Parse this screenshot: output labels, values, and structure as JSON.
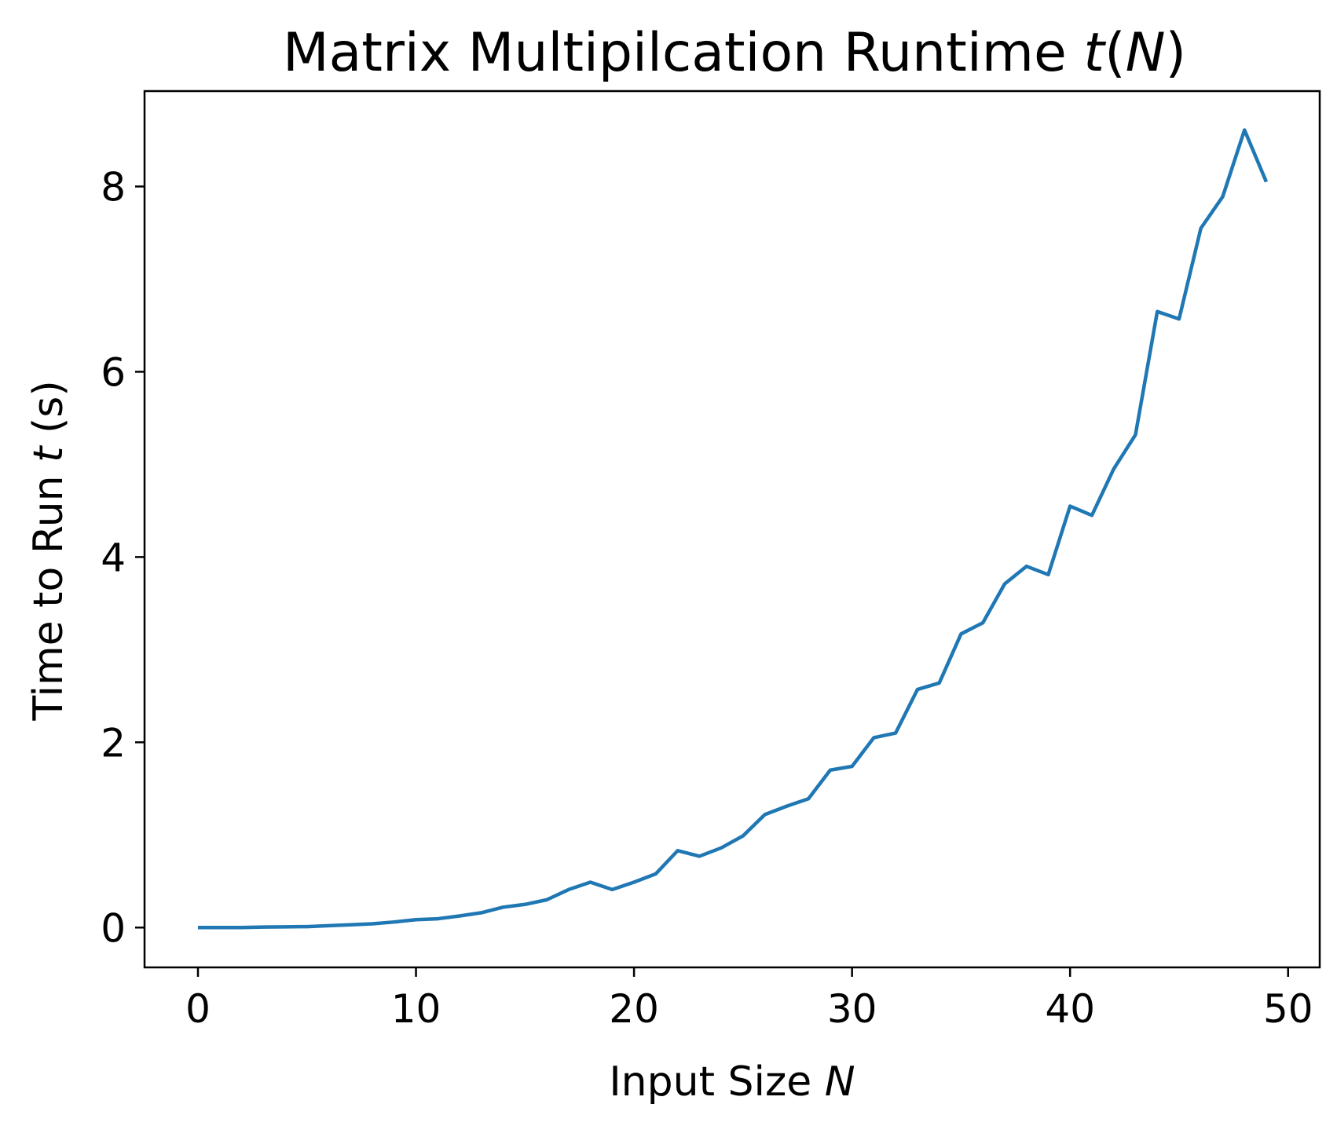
{
  "chart_data": {
    "type": "line",
    "title": {
      "prefix": "Matrix Multipilcation Runtime ",
      "var": "t",
      "open": "(",
      "var2": "N",
      "close": ")"
    },
    "xlabel": {
      "prefix": "Input Size ",
      "var": "N"
    },
    "ylabel": {
      "prefix": "Time to Run ",
      "var": "t",
      "suffix": " (s)"
    },
    "xlim": [
      -2.45,
      51.45
    ],
    "ylim": [
      -0.43,
      9.03
    ],
    "x_ticks": [
      0,
      10,
      20,
      30,
      40,
      50
    ],
    "y_ticks": [
      0,
      2,
      4,
      6,
      8
    ],
    "x_tick_labels": [
      "0",
      "10",
      "20",
      "30",
      "40",
      "50"
    ],
    "y_tick_labels": [
      "0",
      "2",
      "4",
      "6",
      "8"
    ],
    "grid": false,
    "legend": null,
    "series": [
      {
        "color": "#1f77b4",
        "x": [
          0,
          1,
          2,
          3,
          4,
          5,
          6,
          7,
          8,
          9,
          10,
          11,
          12,
          13,
          14,
          15,
          16,
          17,
          18,
          19,
          20,
          21,
          22,
          23,
          24,
          25,
          26,
          27,
          28,
          29,
          30,
          31,
          32,
          33,
          34,
          35,
          36,
          37,
          38,
          39,
          40,
          41,
          42,
          43,
          44,
          45,
          46,
          47,
          48,
          49
        ],
        "y": [
          0.0,
          0.0,
          0.0,
          0.005,
          0.008,
          0.01,
          0.02,
          0.03,
          0.04,
          0.06,
          0.085,
          0.095,
          0.125,
          0.16,
          0.22,
          0.25,
          0.3,
          0.41,
          0.49,
          0.41,
          0.49,
          0.58,
          0.83,
          0.77,
          0.86,
          0.99,
          1.22,
          1.31,
          1.39,
          1.7,
          1.74,
          2.05,
          2.1,
          2.57,
          2.64,
          3.17,
          3.29,
          3.71,
          3.9,
          3.81,
          4.55,
          4.45,
          4.95,
          5.32,
          6.65,
          6.57,
          7.55,
          7.89,
          8.61,
          8.05
        ]
      }
    ]
  }
}
